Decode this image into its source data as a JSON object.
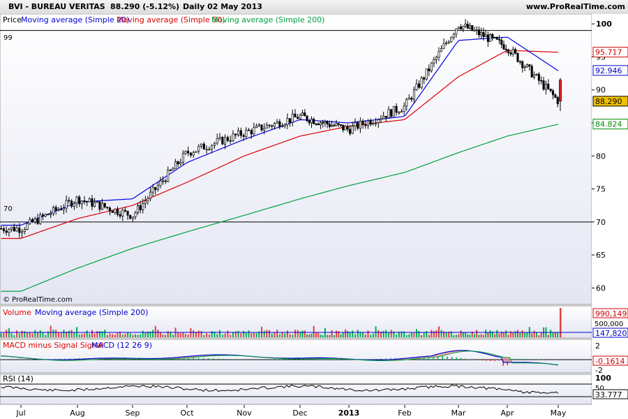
{
  "header": {
    "ticker": "BVI - BUREAU VERITAS",
    "quote": "88.290 (-5.12%)",
    "period": "Daily  02 May 2013",
    "website": "www.ProRealTime.com"
  },
  "price_panel": {
    "legend": [
      "Price",
      "Moving average (Simple 20)",
      "Moving average (Simple 50)",
      "Moving average (Simple 200)"
    ],
    "watermark": "© ProRealTime.com",
    "hline_labels": [
      "99",
      "70"
    ],
    "hlines": [
      99,
      70
    ],
    "y_ticks": [
      "100",
      "95",
      "90",
      "85",
      "80",
      "75",
      "70",
      "65",
      "60"
    ],
    "badges": [
      {
        "text": "95.717",
        "value": 95.717,
        "color": "#cc0000",
        "bg": "#ffffff"
      },
      {
        "text": "92.946",
        "value": 92.946,
        "color": "#0000cc",
        "bg": "#ffffff"
      },
      {
        "text": "88.290",
        "value": 88.29,
        "color": "#000000",
        "bg": "#f0c000"
      },
      {
        "text": "84.824",
        "value": 84.824,
        "color": "#008800",
        "bg": "#ffffff"
      }
    ]
  },
  "volume_panel": {
    "legend": [
      "Volume",
      "Moving average (Simple 200)"
    ],
    "y_ticks": [
      "500,000"
    ],
    "badges": [
      {
        "text": "990,149",
        "color": "#cc0000"
      },
      {
        "text": "147,820",
        "color": "#0000cc"
      }
    ]
  },
  "macd_panel": {
    "legend": [
      "MACD minus Signal Signal",
      "MACD (12 26 9)"
    ],
    "y_ticks": [
      "2",
      "0",
      "-2"
    ],
    "badge": "-0.1614"
  },
  "rsi_panel": {
    "legend": "RSI (14)",
    "y_ticks": [
      "100",
      "50"
    ],
    "badge": "33.777"
  },
  "x_axis": {
    "labels": [
      "Jul",
      "Aug",
      "Sep",
      "Oct",
      "Nov",
      "Dec",
      "2013",
      "Feb",
      "Mar",
      "Apr",
      "May"
    ]
  },
  "colors": {
    "up": "#ffffff",
    "down": "#000000",
    "ma20": "#0000dd",
    "ma50": "#dd0000",
    "ma200": "#00a040",
    "vol_up": "#00b050",
    "vol_down": "#e04040",
    "panel_bg_top": "#ffffff",
    "panel_bg_bottom": "#e6e8f5"
  },
  "chart_data": {
    "type": "line",
    "title": "BVI - BUREAU VERITAS",
    "x": [
      "Jul",
      "Aug",
      "Sep",
      "Oct",
      "Nov",
      "Dec",
      "2013",
      "Feb",
      "Mar",
      "Apr",
      "May"
    ],
    "ylim": [
      57.5,
      101.5
    ],
    "series": [
      {
        "name": "Price",
        "values": [
          69,
          73.5,
          71,
          80.5,
          83.5,
          86,
          84,
          87.5,
          100,
          96.5,
          88.3
        ]
      },
      {
        "name": "Moving average (Simple 20)",
        "values": [
          69.5,
          73,
          73.5,
          79,
          82.5,
          85.5,
          85,
          86,
          97.5,
          98,
          92.9
        ]
      },
      {
        "name": "Moving average (Simple 50)",
        "values": [
          67.5,
          70.5,
          72.5,
          76,
          80,
          83,
          84.5,
          85.5,
          92,
          96,
          95.7
        ]
      },
      {
        "name": "Moving average (Simple 200)",
        "values": [
          59.5,
          63,
          66,
          68.5,
          71,
          73.5,
          75.5,
          77.5,
          80.5,
          83,
          84.8
        ]
      }
    ]
  }
}
